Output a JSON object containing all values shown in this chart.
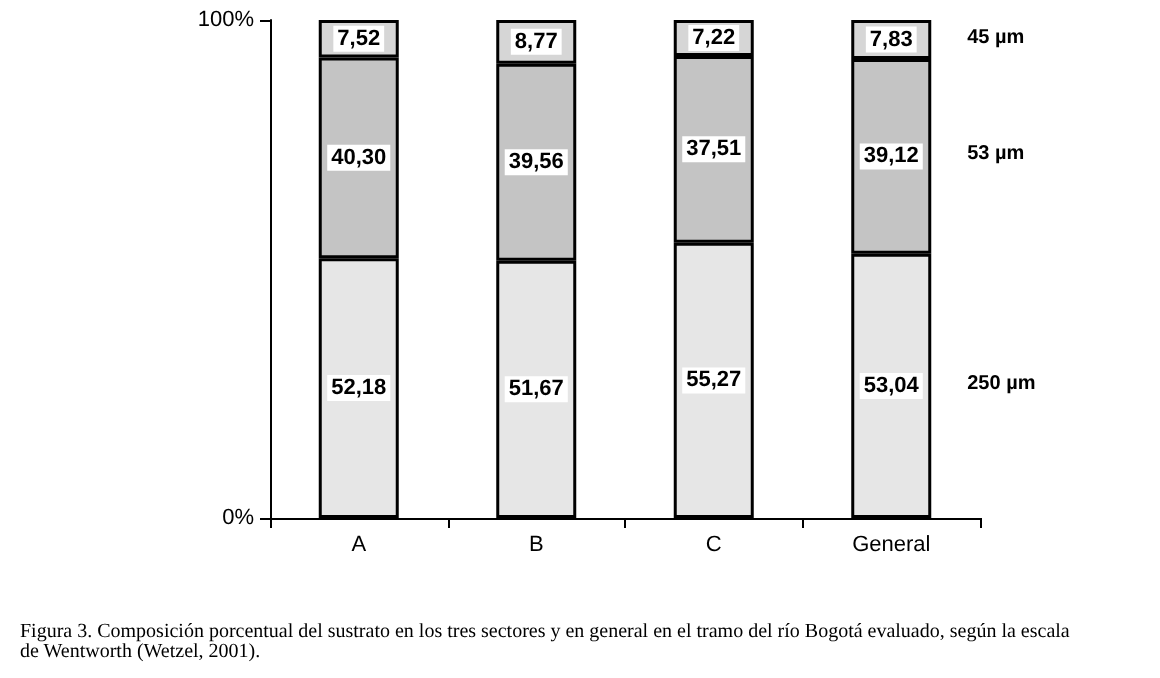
{
  "chart_data": {
    "type": "bar",
    "stacked": true,
    "categories": [
      "A",
      "B",
      "C",
      "General"
    ],
    "series": [
      {
        "name": "250 µm",
        "color": "#e6e6e6",
        "values": [
          52.18,
          51.67,
          55.27,
          53.04
        ],
        "value_labels": [
          "52,18",
          "51,67",
          "55,27",
          "53,04"
        ]
      },
      {
        "name": "53 µm",
        "color": "#c4c4c4",
        "values": [
          40.3,
          39.56,
          37.51,
          39.12
        ],
        "value_labels": [
          "40,30",
          "39,56",
          "37,51",
          "39,12"
        ]
      },
      {
        "name": "45 µm",
        "color": "#d6d6d6",
        "values": [
          7.52,
          8.77,
          7.22,
          7.83
        ],
        "value_labels": [
          "7,52",
          "8,77",
          "7,22",
          "7,83"
        ]
      }
    ],
    "ylim": [
      0,
      100
    ],
    "yticks": [
      {
        "value": 0,
        "label": "0%"
      },
      {
        "value": 100,
        "label": "100%"
      }
    ],
    "grid": false,
    "legend": false,
    "annotations": [
      "Figura 3. Composición porcentual del sustrato en los tres sectores y en general en el tramo del río Bogotá evaluado, según la escala de Wentworth (Wetzel, 2001)."
    ]
  }
}
